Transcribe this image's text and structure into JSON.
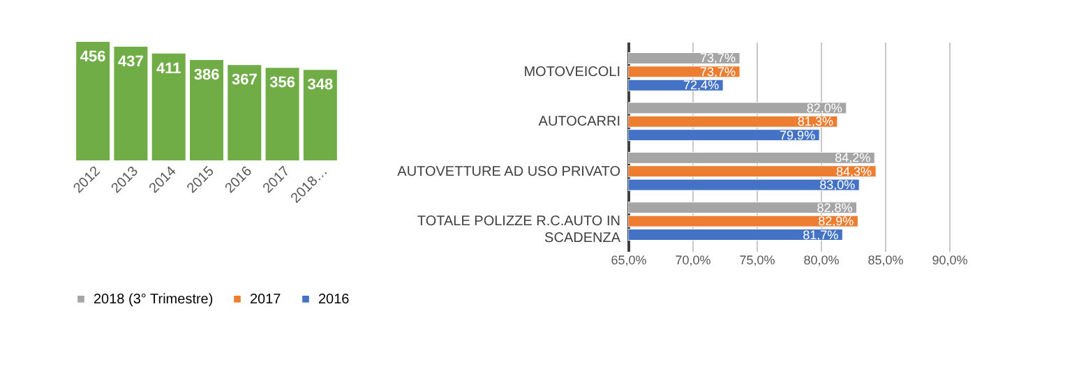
{
  "chart_data": [
    {
      "type": "bar",
      "categories": [
        "2012",
        "2013",
        "2014",
        "2015",
        "2016",
        "2017",
        "2018…"
      ],
      "values": [
        456,
        437,
        411,
        386,
        367,
        356,
        348
      ],
      "color": "#70ad47",
      "data_labels": true,
      "grid": false
    },
    {
      "type": "bar",
      "orientation": "horizontal",
      "categories": [
        "MOTOVEICOLI",
        "AUTOCARRI",
        "AUTOVETTURE AD USO PRIVATO",
        "TOTALE POLIZZE R.C.AUTO IN SCADENZA"
      ],
      "series": [
        {
          "name": "2018 (3° Trimestre)",
          "color": "#a5a5a5",
          "values": [
            73.7,
            82.0,
            84.2,
            82.8
          ],
          "value_labels": [
            "73,7%",
            "82,0%",
            "84,2%",
            "82,8%"
          ]
        },
        {
          "name": "2017",
          "color": "#ed7d31",
          "values": [
            73.7,
            81.3,
            84.3,
            82.9
          ],
          "value_labels": [
            "73,7%",
            "81,3%",
            "84,3%",
            "82,9%"
          ]
        },
        {
          "name": "2016",
          "color": "#4472c4",
          "values": [
            72.4,
            79.9,
            83.0,
            81.7
          ],
          "value_labels": [
            "72,4%",
            "79,9%",
            "83,0%",
            "81,7%"
          ]
        }
      ],
      "xlim": [
        65,
        90
      ],
      "xticks": [
        {
          "value": 65,
          "label": "65,0%"
        },
        {
          "value": 70,
          "label": "70,0%"
        },
        {
          "value": 75,
          "label": "75,0%"
        },
        {
          "value": 80,
          "label": "80,0%"
        },
        {
          "value": 85,
          "label": "85,0%"
        },
        {
          "value": 90,
          "label": "90,0%"
        }
      ],
      "grid": "x",
      "legend": "bottom"
    }
  ]
}
